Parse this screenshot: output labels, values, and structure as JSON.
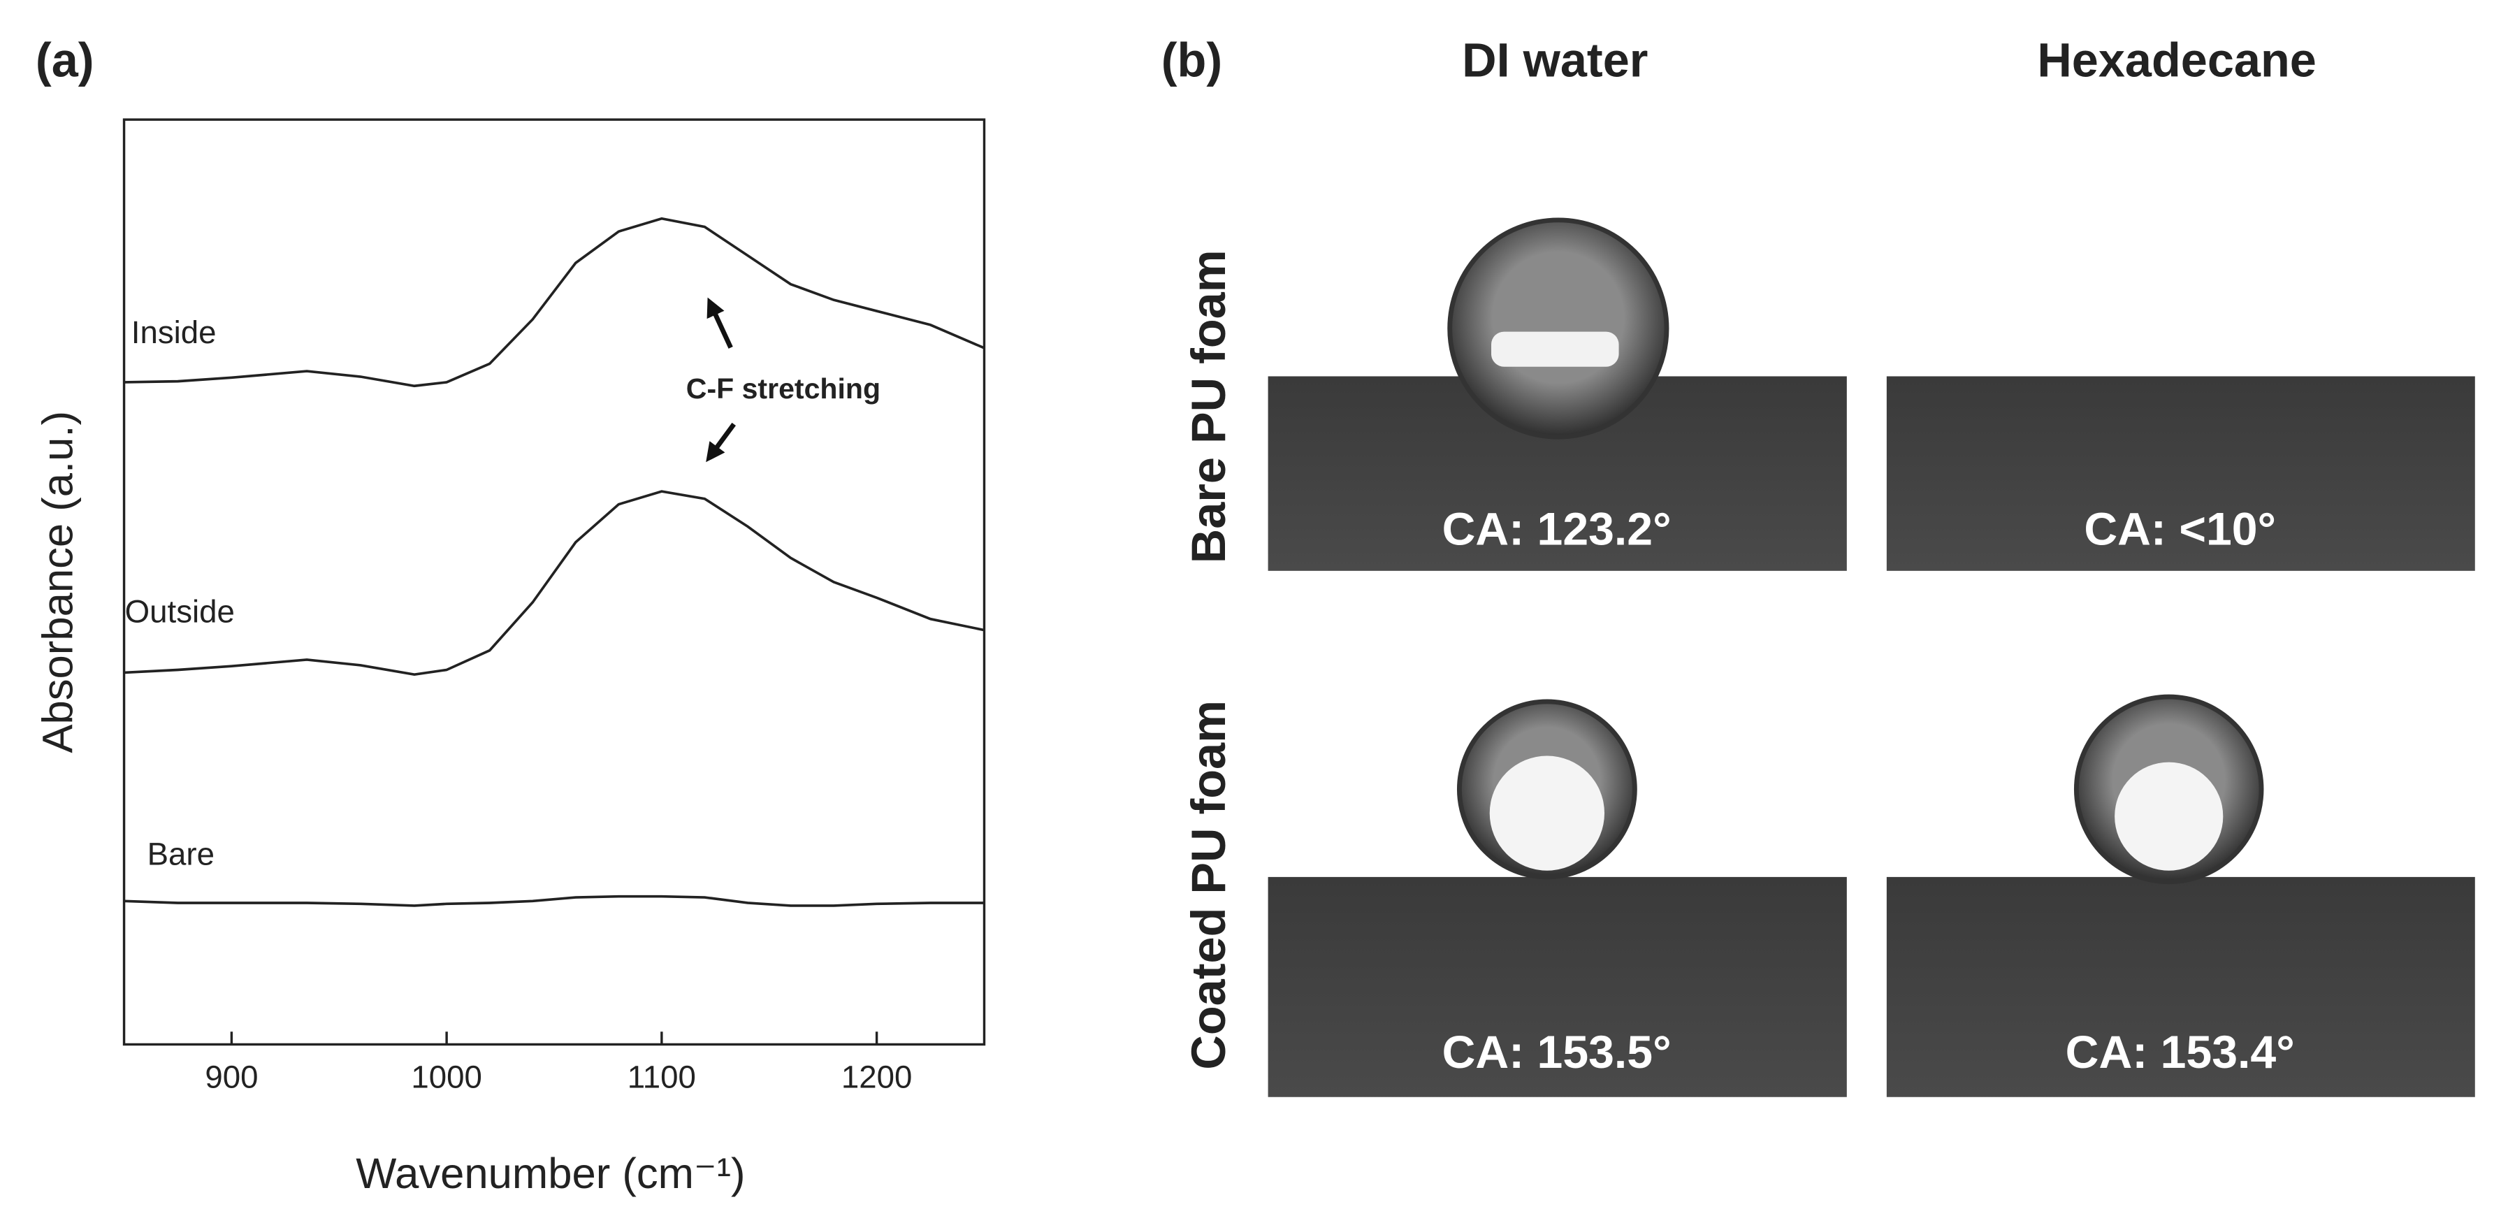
{
  "chart_data": {
    "type": "line",
    "panel_label": "(a)",
    "xlabel": "Wavenumber (cm⁻¹)",
    "ylabel": "Absorbance (a.u.)",
    "x": [
      850,
      875,
      900,
      935,
      960,
      985,
      1000,
      1020,
      1040,
      1060,
      1080,
      1100,
      1120,
      1140,
      1160,
      1180,
      1200,
      1225,
      1250
    ],
    "xlim": [
      850,
      1250
    ],
    "xticks": [
      900,
      1000,
      1100,
      1200
    ],
    "ylim": [
      0,
      100
    ],
    "series": [
      {
        "name": "Inside",
        "color": "#222222",
        "values": [
          71.6,
          71.7,
          72.1,
          72.8,
          72.2,
          71.2,
          71.6,
          73.6,
          78.4,
          84.5,
          87.9,
          89.3,
          88.4,
          85.3,
          82.2,
          80.5,
          79.3,
          77.8,
          75.3
        ]
      },
      {
        "name": "Outside",
        "color": "#222222",
        "values": [
          40.2,
          40.5,
          40.9,
          41.6,
          41.0,
          40.0,
          40.5,
          42.6,
          47.8,
          54.3,
          58.4,
          59.8,
          59.0,
          56.0,
          52.6,
          50.0,
          48.3,
          46.0,
          44.8
        ]
      },
      {
        "name": "Bare",
        "color": "#222222",
        "values": [
          15.5,
          15.3,
          15.3,
          15.3,
          15.2,
          15.0,
          15.2,
          15.3,
          15.5,
          15.9,
          16.0,
          16.0,
          15.9,
          15.3,
          15.0,
          15.0,
          15.2,
          15.3,
          15.3
        ]
      }
    ],
    "annotation": "C-F stretching"
  },
  "panel_b": {
    "panel_label": "(b)",
    "columns": [
      "DI water",
      "Hexadecane"
    ],
    "rows": [
      "Bare PU foam",
      "Coated PU foam"
    ],
    "captions": [
      [
        "CA: 123.2°",
        "CA: <10°"
      ],
      [
        "CA: 153.5°",
        "CA: 153.4°"
      ]
    ]
  }
}
